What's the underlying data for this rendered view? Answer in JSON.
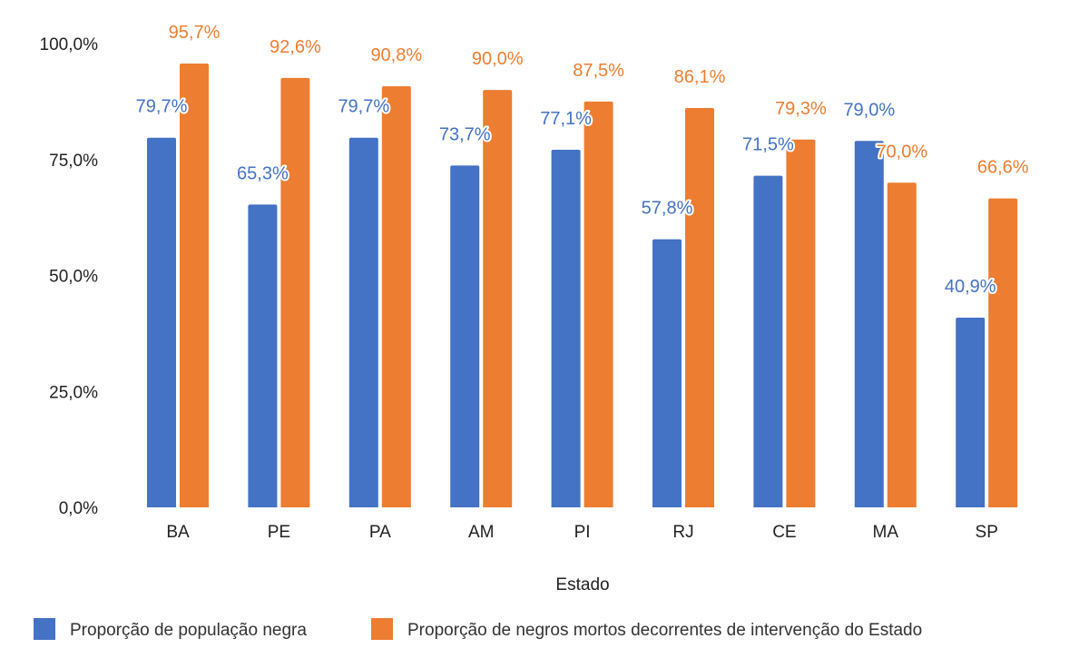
{
  "chart_data": {
    "type": "bar",
    "title": "",
    "xlabel": "Estado",
    "ylabel": "",
    "ylim": [
      0,
      100
    ],
    "yticks": [
      "0,0%",
      "25,0%",
      "50,0%",
      "75,0%",
      "100,0%"
    ],
    "ytick_values": [
      0,
      25,
      50,
      75,
      100
    ],
    "grid": false,
    "legend_position": "bottom-left",
    "categories": [
      "BA",
      "PE",
      "PA",
      "AM",
      "PI",
      "RJ",
      "CE",
      "MA",
      "SP"
    ],
    "series": [
      {
        "name": "Proporção de população negra",
        "color": "#4472C4",
        "values": [
          79.7,
          65.3,
          79.7,
          73.7,
          77.1,
          57.8,
          71.5,
          79.0,
          40.9
        ],
        "labels": [
          "79,7%",
          "65,3%",
          "79,7%",
          "73,7%",
          "77,1%",
          "57,8%",
          "71,5%",
          "79,0%",
          "40,9%"
        ]
      },
      {
        "name": "Proporção de negros mortos decorrentes de intervenção do Estado",
        "color": "#ED7D31",
        "values": [
          95.7,
          92.6,
          90.8,
          90.0,
          87.5,
          86.1,
          79.3,
          70.0,
          66.6
        ],
        "labels": [
          "95,7%",
          "92,6%",
          "90,8%",
          "90,0%",
          "87,5%",
          "86,1%",
          "79,3%",
          "70,0%",
          "66,6%"
        ]
      }
    ]
  }
}
